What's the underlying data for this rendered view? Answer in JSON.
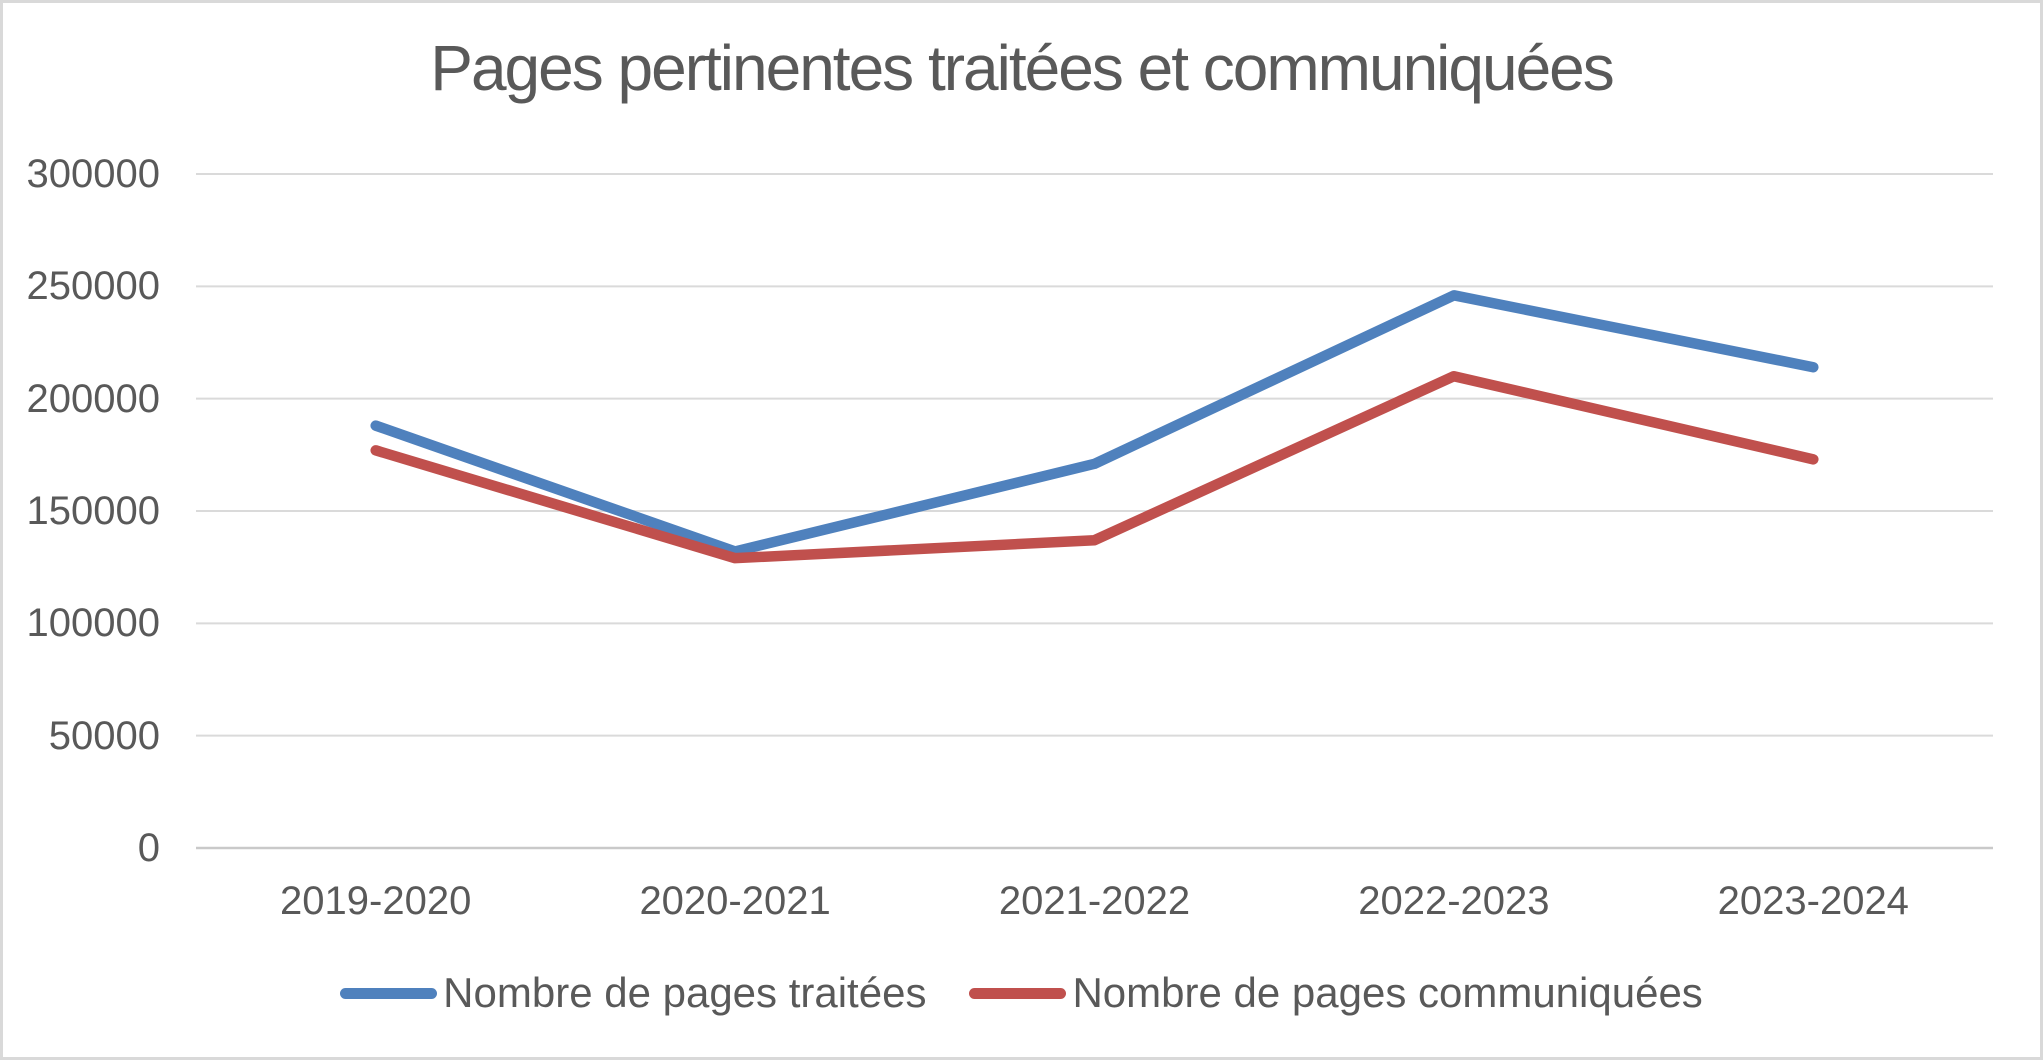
{
  "chart": {
    "title": "Pages pertinentes traitées et communiquées"
  },
  "chart_data": {
    "type": "line",
    "title": "Pages pertinentes traitées et communiquées",
    "categories": [
      "2019-2020",
      "2020-2021",
      "2021-2022",
      "2022-2023",
      "2023-2024"
    ],
    "series": [
      {
        "name": "Nombre de pages traitées",
        "color": "#4F81BD",
        "values": [
          188000,
          132000,
          171000,
          246000,
          214000
        ]
      },
      {
        "name": "Nombre de pages communiquées",
        "color": "#C0504D",
        "values": [
          177000,
          129000,
          137000,
          210000,
          173000
        ]
      }
    ],
    "xlabel": "",
    "ylabel": "",
    "ylim": [
      0,
      300000
    ],
    "ytick_step": 50000,
    "ytick_labels": [
      "0",
      "50000",
      "100000",
      "150000",
      "200000",
      "250000",
      "300000"
    ],
    "grid": "horizontal-only",
    "legend_position": "bottom"
  },
  "style": {
    "label_color": "#595959",
    "gridline_color": "#DADADA",
    "axis_line_color": "#C9C9C9",
    "border_color": "#D9D9D9",
    "background": "#FFFFFF"
  }
}
